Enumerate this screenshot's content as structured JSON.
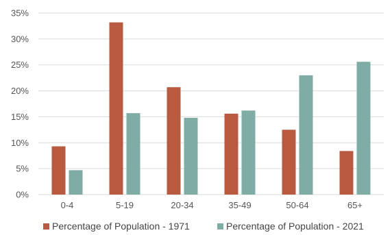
{
  "chart_data": {
    "type": "bar",
    "categories": [
      "0-4",
      "5-19",
      "20-34",
      "35-49",
      "50-64",
      "65+"
    ],
    "series": [
      {
        "name": "Percentage of Population - 1971",
        "color": "#b85a3f",
        "values": [
          9.3,
          33.2,
          20.7,
          15.6,
          12.5,
          8.4
        ]
      },
      {
        "name": "Percentage of Population - 2021",
        "color": "#7fada6",
        "values": [
          4.7,
          15.7,
          14.8,
          16.2,
          23.0,
          25.6
        ]
      }
    ],
    "y_ticks": [
      "0%",
      "5%",
      "10%",
      "15%",
      "20%",
      "25%",
      "30%",
      "35%"
    ],
    "ylim": [
      0,
      35
    ],
    "ytick_step": 5,
    "grid": true,
    "legend_position": "bottom",
    "title": "",
    "xlabel": "",
    "ylabel": ""
  }
}
